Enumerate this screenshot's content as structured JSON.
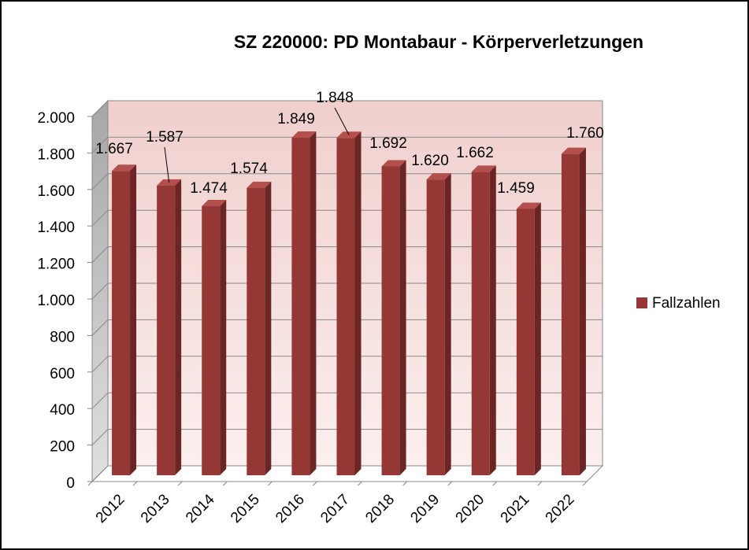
{
  "chart_data": {
    "type": "bar",
    "title": "SZ 220000: PD Montabaur - Körperverletzungen",
    "categories": [
      "2012",
      "2013",
      "2014",
      "2015",
      "2016",
      "2017",
      "2018",
      "2019",
      "2020",
      "2021",
      "2022"
    ],
    "series": [
      {
        "name": "Fallzahlen",
        "color": "#953735",
        "values": [
          1667,
          1587,
          1474,
          1574,
          1849,
          1848,
          1692,
          1620,
          1662,
          1459,
          1760
        ],
        "value_labels": [
          "1.667",
          "1.587",
          "1.474",
          "1.574",
          "1.849",
          "1.848",
          "1.692",
          "1.620",
          "1.662",
          "1.459",
          "1.760"
        ]
      }
    ],
    "ylim": [
      0,
      2000
    ],
    "yticks": [
      0,
      200,
      400,
      600,
      800,
      {
        "value": 1000,
        "label": "1.000"
      },
      {
        "value": 1200,
        "label": "1.200"
      },
      {
        "value": 1400,
        "label": "1.400"
      },
      {
        "value": 1600,
        "label": "1.600"
      },
      {
        "value": 1800,
        "label": "1.800"
      },
      {
        "value": 2000,
        "label": "2.000"
      }
    ],
    "grid": true,
    "legend": "right"
  }
}
